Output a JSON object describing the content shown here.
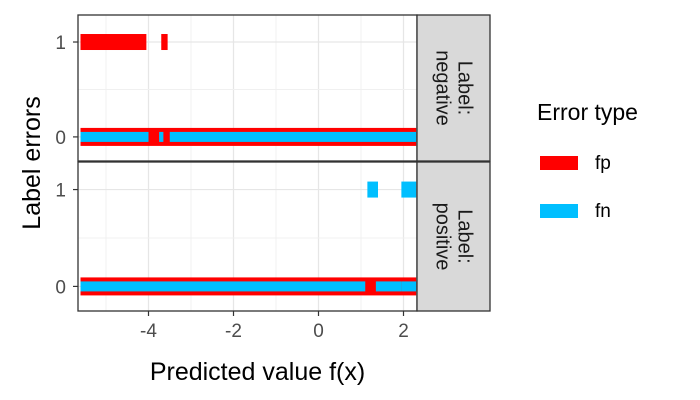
{
  "chart_data": {
    "type": "scatter",
    "xlabel": "Predicted value f(x)",
    "ylabel": "Label errors",
    "xlim": [
      -5.6,
      2.3
    ],
    "x_ticks": [
      -4,
      -2,
      0,
      2
    ],
    "y_categories": [
      0,
      1
    ],
    "grid": true,
    "legend": {
      "title": "Error type",
      "position": "right",
      "entries": [
        {
          "name": "fp",
          "color": "#FF0000"
        },
        {
          "name": "fn",
          "color": "#00BFFF"
        }
      ]
    },
    "panels": [
      {
        "strip_label": "Label: negative",
        "strip_lines": [
          "Label:",
          "negative"
        ],
        "series": [
          {
            "name": "fp",
            "color": "#FF0000",
            "segments": [
              {
                "y": 1,
                "x_start": -5.6,
                "x_end": -4.05
              },
              {
                "y": 1,
                "x_start": -3.7,
                "x_end": -3.55
              },
              {
                "y": 0,
                "x_start": -5.6,
                "x_end": 2.3
              }
            ]
          },
          {
            "name": "fn",
            "color": "#00BFFF",
            "segments": [
              {
                "y": 0,
                "x_start": -5.6,
                "x_end": -4.0
              },
              {
                "y": 0,
                "x_start": -3.75,
                "x_end": -3.65
              },
              {
                "y": 0,
                "x_start": -3.5,
                "x_end": 2.3
              }
            ]
          }
        ]
      },
      {
        "strip_label": "Label: positive",
        "strip_lines": [
          "Label:",
          "positive"
        ],
        "series": [
          {
            "name": "fp",
            "color": "#FF0000",
            "segments": [
              {
                "y": 0,
                "x_start": -5.6,
                "x_end": 2.3
              }
            ]
          },
          {
            "name": "fn",
            "color": "#00BFFF",
            "segments": [
              {
                "y": 1,
                "x_start": 1.15,
                "x_end": 1.4
              },
              {
                "y": 1,
                "x_start": 1.95,
                "x_end": 2.3
              },
              {
                "y": 0,
                "x_start": -5.6,
                "x_end": 1.1
              },
              {
                "y": 0,
                "x_start": 1.35,
                "x_end": 1.95
              },
              {
                "y": 0,
                "x_start": 1.95,
                "x_end": 2.3
              }
            ]
          }
        ]
      }
    ]
  }
}
